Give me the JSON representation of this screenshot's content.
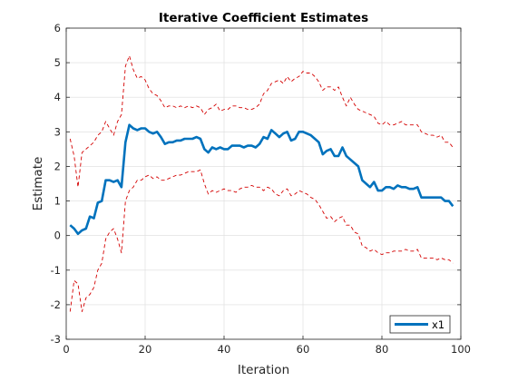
{
  "chart_data": {
    "type": "line",
    "title": "Iterative Coefficient Estimates",
    "xlabel": "Iteration",
    "ylabel": "Estimate",
    "xlim": [
      0,
      100
    ],
    "ylim": [
      -3,
      6
    ],
    "xticks": [
      0,
      20,
      40,
      60,
      80,
      100
    ],
    "yticks": [
      -3,
      -2,
      -1,
      0,
      1,
      2,
      3,
      4,
      5,
      6
    ],
    "grid": true,
    "legend": {
      "location": "bottom-right",
      "entries": [
        "x1"
      ]
    },
    "series": [
      {
        "name": "x1",
        "style": "solid",
        "color": "#0072BD",
        "x": [
          1,
          2,
          3,
          4,
          5,
          6,
          7,
          8,
          9,
          10,
          11,
          12,
          13,
          14,
          15,
          16,
          17,
          18,
          19,
          20,
          21,
          22,
          23,
          24,
          25,
          26,
          27,
          28,
          29,
          30,
          31,
          32,
          33,
          34,
          35,
          36,
          37,
          38,
          39,
          40,
          41,
          42,
          43,
          44,
          45,
          46,
          47,
          48,
          49,
          50,
          51,
          52,
          53,
          54,
          55,
          56,
          57,
          58,
          59,
          60,
          61,
          62,
          63,
          64,
          65,
          66,
          67,
          68,
          69,
          70,
          71,
          72,
          73,
          74,
          75,
          76,
          77,
          78,
          79,
          80,
          81,
          82,
          83,
          84,
          85,
          86,
          87,
          88,
          89,
          90,
          91,
          92,
          93,
          94,
          95,
          96,
          97,
          98
        ],
        "y": [
          0.3,
          0.2,
          0.05,
          0.15,
          0.2,
          0.55,
          0.5,
          0.95,
          1.0,
          1.6,
          1.6,
          1.55,
          1.6,
          1.4,
          2.7,
          3.2,
          3.1,
          3.05,
          3.1,
          3.1,
          3.0,
          2.95,
          3.0,
          2.85,
          2.65,
          2.7,
          2.7,
          2.75,
          2.75,
          2.8,
          2.8,
          2.8,
          2.85,
          2.8,
          2.5,
          2.4,
          2.55,
          2.5,
          2.55,
          2.5,
          2.5,
          2.6,
          2.6,
          2.6,
          2.55,
          2.6,
          2.6,
          2.55,
          2.65,
          2.85,
          2.8,
          3.05,
          2.95,
          2.85,
          2.95,
          3.0,
          2.75,
          2.8,
          3.0,
          3.0,
          2.95,
          2.9,
          2.8,
          2.7,
          2.35,
          2.45,
          2.5,
          2.3,
          2.3,
          2.55,
          2.3,
          2.2,
          2.1,
          2.0,
          1.6,
          1.5,
          1.4,
          1.55,
          1.3,
          1.3,
          1.4,
          1.4,
          1.35,
          1.45,
          1.4,
          1.4,
          1.35,
          1.35,
          1.4,
          1.1,
          1.1,
          1.1,
          1.1,
          1.1,
          1.1,
          1.0,
          1.0,
          0.85
        ]
      },
      {
        "name": "",
        "style": "dashed",
        "color": "#D40000",
        "x": [
          1,
          2,
          3,
          4,
          5,
          6,
          7,
          8,
          9,
          10,
          11,
          12,
          13,
          14,
          15,
          16,
          17,
          18,
          19,
          20,
          21,
          22,
          23,
          24,
          25,
          26,
          27,
          28,
          29,
          30,
          31,
          32,
          33,
          34,
          35,
          36,
          37,
          38,
          39,
          40,
          41,
          42,
          43,
          44,
          45,
          46,
          47,
          48,
          49,
          50,
          51,
          52,
          53,
          54,
          55,
          56,
          57,
          58,
          59,
          60,
          61,
          62,
          63,
          64,
          65,
          66,
          67,
          68,
          69,
          70,
          71,
          72,
          73,
          74,
          75,
          76,
          77,
          78,
          79,
          80,
          81,
          82,
          83,
          84,
          85,
          86,
          87,
          88,
          89,
          90,
          91,
          92,
          93,
          94,
          95,
          96,
          97,
          98
        ],
        "y": [
          2.8,
          2.3,
          1.4,
          2.4,
          2.5,
          2.6,
          2.7,
          2.9,
          3.0,
          3.3,
          3.1,
          2.9,
          3.3,
          3.5,
          4.9,
          5.2,
          4.8,
          4.55,
          4.6,
          4.5,
          4.25,
          4.1,
          4.05,
          3.9,
          3.7,
          3.75,
          3.75,
          3.7,
          3.75,
          3.7,
          3.75,
          3.7,
          3.75,
          3.7,
          3.5,
          3.65,
          3.7,
          3.8,
          3.6,
          3.65,
          3.65,
          3.75,
          3.75,
          3.7,
          3.7,
          3.65,
          3.65,
          3.7,
          3.8,
          4.1,
          4.2,
          4.4,
          4.45,
          4.5,
          4.4,
          4.6,
          4.45,
          4.55,
          4.6,
          4.75,
          4.7,
          4.7,
          4.6,
          4.45,
          4.2,
          4.3,
          4.3,
          4.2,
          4.3,
          4.0,
          3.75,
          4.0,
          3.8,
          3.65,
          3.6,
          3.55,
          3.5,
          3.45,
          3.25,
          3.2,
          3.3,
          3.2,
          3.2,
          3.25,
          3.3,
          3.2,
          3.2,
          3.2,
          3.2,
          3.0,
          2.95,
          2.9,
          2.9,
          2.85,
          2.9,
          2.7,
          2.7,
          2.55
        ]
      },
      {
        "name": "",
        "style": "dashed",
        "color": "#D40000",
        "x": [
          1,
          2,
          3,
          4,
          5,
          6,
          7,
          8,
          9,
          10,
          11,
          12,
          13,
          14,
          15,
          16,
          17,
          18,
          19,
          20,
          21,
          22,
          23,
          24,
          25,
          26,
          27,
          28,
          29,
          30,
          31,
          32,
          33,
          34,
          35,
          36,
          37,
          38,
          39,
          40,
          41,
          42,
          43,
          44,
          45,
          46,
          47,
          48,
          49,
          50,
          51,
          52,
          53,
          54,
          55,
          56,
          57,
          58,
          59,
          60,
          61,
          62,
          63,
          64,
          65,
          66,
          67,
          68,
          69,
          70,
          71,
          72,
          73,
          74,
          75,
          76,
          77,
          78,
          79,
          80,
          81,
          82,
          83,
          84,
          85,
          86,
          87,
          88,
          89,
          90,
          91,
          92,
          93,
          94,
          95,
          96,
          97,
          98
        ],
        "y": [
          -2.2,
          -1.3,
          -1.4,
          -2.2,
          -1.8,
          -1.7,
          -1.5,
          -1.0,
          -0.8,
          -0.1,
          0.1,
          0.2,
          -0.1,
          -0.5,
          1.0,
          1.3,
          1.4,
          1.6,
          1.6,
          1.7,
          1.75,
          1.65,
          1.7,
          1.6,
          1.6,
          1.65,
          1.7,
          1.75,
          1.75,
          1.8,
          1.85,
          1.85,
          1.85,
          1.9,
          1.5,
          1.2,
          1.3,
          1.25,
          1.3,
          1.35,
          1.3,
          1.3,
          1.25,
          1.35,
          1.4,
          1.4,
          1.45,
          1.4,
          1.4,
          1.3,
          1.4,
          1.35,
          1.2,
          1.15,
          1.3,
          1.35,
          1.15,
          1.2,
          1.3,
          1.25,
          1.2,
          1.1,
          1.05,
          0.9,
          0.7,
          0.5,
          0.55,
          0.4,
          0.5,
          0.55,
          0.3,
          0.3,
          0.1,
          0.05,
          -0.3,
          -0.35,
          -0.45,
          -0.4,
          -0.5,
          -0.55,
          -0.5,
          -0.5,
          -0.45,
          -0.45,
          -0.45,
          -0.4,
          -0.45,
          -0.45,
          -0.4,
          -0.65,
          -0.65,
          -0.65,
          -0.65,
          -0.7,
          -0.65,
          -0.7,
          -0.7,
          -0.8
        ]
      }
    ]
  }
}
